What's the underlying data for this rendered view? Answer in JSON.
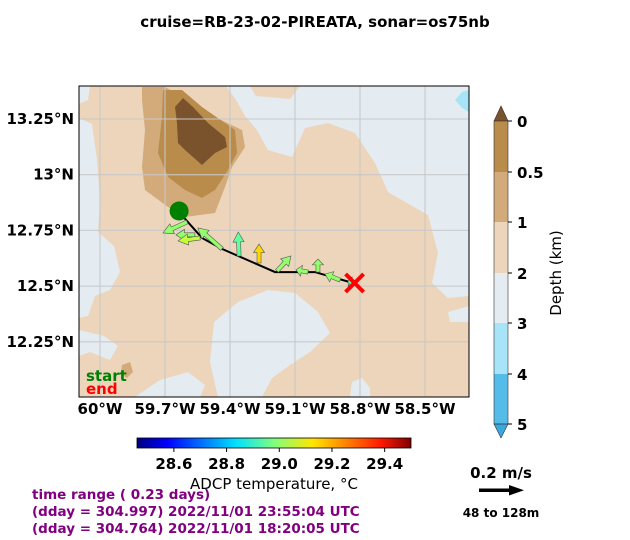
{
  "title": "cruise=RB-23-02-PIREATA,   sonar=os75nb",
  "map": {
    "lat_ticks": [
      {
        "value": 13.25,
        "label": "13.25°N"
      },
      {
        "value": 13.0,
        "label": "13°N"
      },
      {
        "value": 12.75,
        "label": "12.75°N"
      },
      {
        "value": 12.5,
        "label": "12.5°N"
      },
      {
        "value": 12.25,
        "label": "12.25°N"
      }
    ],
    "lon_ticks": [
      {
        "value": -60.0,
        "label": "60°W"
      },
      {
        "value": -59.7,
        "label": "59.7°W"
      },
      {
        "value": -59.4,
        "label": "59.4°W"
      },
      {
        "value": -59.1,
        "label": "59.1°W"
      },
      {
        "value": -58.8,
        "label": "58.8°W"
      },
      {
        "value": -58.5,
        "label": "58.5°W"
      }
    ],
    "grid": true,
    "track": [
      {
        "lon": -59.635,
        "lat": 12.837
      },
      {
        "lon": -59.603,
        "lat": 12.797
      },
      {
        "lon": -59.529,
        "lat": 12.716
      },
      {
        "lon": -59.437,
        "lat": 12.667
      },
      {
        "lon": -59.192,
        "lat": 12.563
      },
      {
        "lon": -59.008,
        "lat": 12.563
      },
      {
        "lon": -58.832,
        "lat": 12.514
      }
    ],
    "start_marker": {
      "lon": -59.635,
      "lat": 12.837,
      "color": "#008000"
    },
    "end_marker": {
      "lon": -58.825,
      "lat": 12.514,
      "color": "#ff0000"
    },
    "legend": {
      "start": "start",
      "end": "end",
      "start_color": "#008000",
      "end_color": "#ff0000"
    },
    "vectors": [
      {
        "lon": -59.598,
        "lat": 12.788,
        "u": -0.107,
        "v": -0.049,
        "temp": 29.0
      },
      {
        "lon": -59.562,
        "lat": 12.73,
        "u": -0.084,
        "v": 0.0,
        "temp": 29.0
      },
      {
        "lon": -59.538,
        "lat": 12.716,
        "u": -0.098,
        "v": -0.013,
        "temp": 29.05
      },
      {
        "lon": -59.437,
        "lat": 12.667,
        "u": -0.107,
        "v": 0.093,
        "temp": 29.0
      },
      {
        "lon": -59.358,
        "lat": 12.635,
        "u": -0.004,
        "v": 0.107,
        "temp": 28.95
      },
      {
        "lon": -59.266,
        "lat": 12.604,
        "u": 0.0,
        "v": 0.084,
        "temp": 29.15
      },
      {
        "lon": -59.183,
        "lat": 12.568,
        "u": 0.062,
        "v": 0.067,
        "temp": 29.0
      },
      {
        "lon": -59.04,
        "lat": 12.563,
        "u": -0.053,
        "v": 0.01,
        "temp": 29.0
      },
      {
        "lon": -58.994,
        "lat": 12.563,
        "u": 0.0,
        "v": 0.058,
        "temp": 29.0
      },
      {
        "lon": -58.892,
        "lat": 12.527,
        "u": -0.067,
        "v": 0.027,
        "temp": 29.0
      },
      {
        "lon": -58.832,
        "lat": 12.514,
        "u": -0.022,
        "v": 0.009,
        "temp": 28.95
      }
    ]
  },
  "depth_colorbar": {
    "label": "Depth (km)",
    "ticks": [
      "0",
      "0.5",
      "1",
      "2",
      "3",
      "4",
      "5"
    ],
    "colors": [
      "#7a532c",
      "#b98c4c",
      "#d3ab7b",
      "#ecd5bb",
      "#e4ecf2",
      "#a8e4f7",
      "#55bbe8",
      "#3aa8de"
    ]
  },
  "temp_colorbar": {
    "label": "ADCP temperature, °C",
    "ticks": [
      "28.6",
      "28.8",
      "29.0",
      "29.2",
      "29.4"
    ],
    "range": [
      28.46,
      29.5
    ],
    "colormap": "jet"
  },
  "scale": {
    "speed_label": "0.2 m/s",
    "speed": 0.2,
    "depth_range": "48 to 128m"
  },
  "info": {
    "time_range": "time range ( 0.23 days)",
    "end_time": "(dday = 304.997) 2022/11/01 23:55:04 UTC",
    "start_time": "(dday = 304.764) 2022/11/01 18:20:05 UTC"
  }
}
